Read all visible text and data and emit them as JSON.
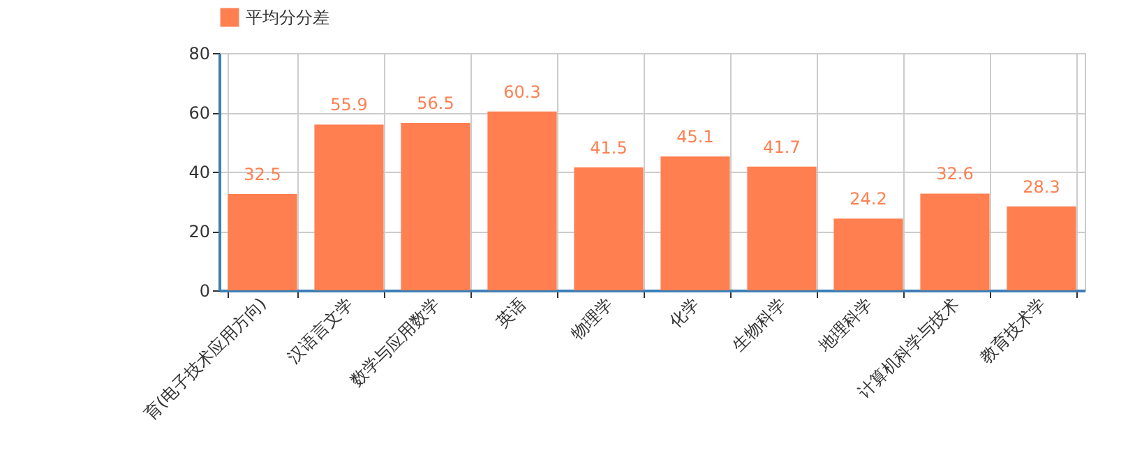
{
  "chart_data": {
    "type": "bar",
    "categories": [
      "育(电子技术应用方向)",
      "汉语言文学",
      "数学与应用数学",
      "英语",
      "物理学",
      "化学",
      "生物科学",
      "地理科学",
      "计算机科学与技术",
      "教育技术学"
    ],
    "series": [
      {
        "name": "平均分分差",
        "color": "#ff7f50",
        "values": [
          32.5,
          55.9,
          56.5,
          60.3,
          41.5,
          45.1,
          41.7,
          24.2,
          32.6,
          28.3
        ]
      }
    ],
    "ylim": [
      0,
      80
    ],
    "yticks": [
      0,
      20,
      40,
      60,
      80
    ],
    "grid": true,
    "legend": "top",
    "data_labels": true
  }
}
